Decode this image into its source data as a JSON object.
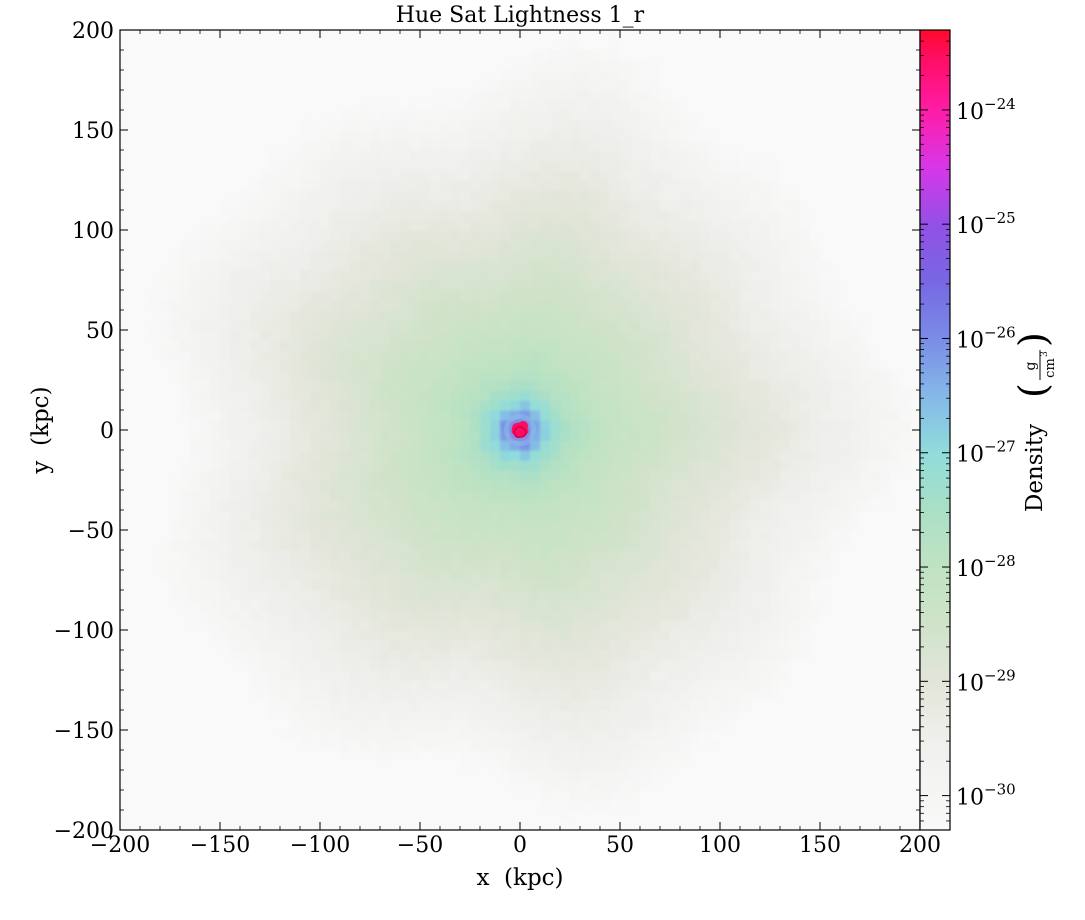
{
  "chart_data": {
    "type": "heatmap",
    "title": "Hue Sat Lightness 1_r",
    "xlabel": "x  (kpc)",
    "ylabel": "y  (kpc)",
    "xlim": [
      -200,
      200
    ],
    "ylim": [
      -200,
      200
    ],
    "x_ticks": [
      -200,
      -150,
      -100,
      -50,
      0,
      50,
      100,
      150,
      200
    ],
    "y_ticks": [
      -200,
      -150,
      -100,
      -50,
      0,
      50,
      100,
      150,
      200
    ],
    "x_tick_labels": [
      "−200",
      "−150",
      "−100",
      "−50",
      "0",
      "50",
      "100",
      "150",
      "200"
    ],
    "y_tick_labels": [
      "−200",
      "−150",
      "−100",
      "−50",
      "0",
      "50",
      "100",
      "150",
      "200"
    ],
    "grid": false,
    "colormap": "Hue Sat Lightness 1_r",
    "colorbar": {
      "label": "Density",
      "unit_numerator": "g",
      "unit_denominator": "cm",
      "unit_exponent": "3",
      "scale": "log",
      "range": [
        5e-31,
        5e-24
      ],
      "tick_exponents": [
        -30,
        -29,
        -28,
        -27,
        -26,
        -25,
        -24
      ],
      "tick_base": "10",
      "tick_exponent_labels": [
        "−30",
        "−29",
        "−28",
        "−27",
        "−26",
        "−25",
        "−24"
      ],
      "color_stops": [
        {
          "exp": -30.3,
          "color": "#f9f9f9"
        },
        {
          "exp": -29.5,
          "color": "#efefec"
        },
        {
          "exp": -29.0,
          "color": "#e2e5d9"
        },
        {
          "exp": -28.5,
          "color": "#cfe3c9"
        },
        {
          "exp": -28.0,
          "color": "#bfe3c2"
        },
        {
          "exp": -27.5,
          "color": "#aadfc6"
        },
        {
          "exp": -27.0,
          "color": "#90dcda"
        },
        {
          "exp": -26.5,
          "color": "#84b8e8"
        },
        {
          "exp": -26.0,
          "color": "#7a8ce6"
        },
        {
          "exp": -25.5,
          "color": "#7767e3"
        },
        {
          "exp": -25.0,
          "color": "#9350e6"
        },
        {
          "exp": -24.5,
          "color": "#d737e8"
        },
        {
          "exp": -24.0,
          "color": "#ff1ca6"
        },
        {
          "exp": -23.5,
          "color": "#ff0c5c"
        },
        {
          "exp": -23.3,
          "color": "#ff0a28"
        }
      ]
    },
    "density_profile": {
      "description_free_model": true,
      "center_kpc": [
        0,
        0
      ],
      "radius_points_kpc": [
        0,
        3,
        8,
        15,
        25,
        40,
        60,
        90,
        120,
        150,
        170,
        185
      ],
      "log10_density": [
        -23.8,
        -24.6,
        -26.3,
        -27.1,
        -27.7,
        -28.1,
        -28.4,
        -28.8,
        -29.2,
        -29.6,
        -30.0,
        -30.3
      ]
    }
  }
}
